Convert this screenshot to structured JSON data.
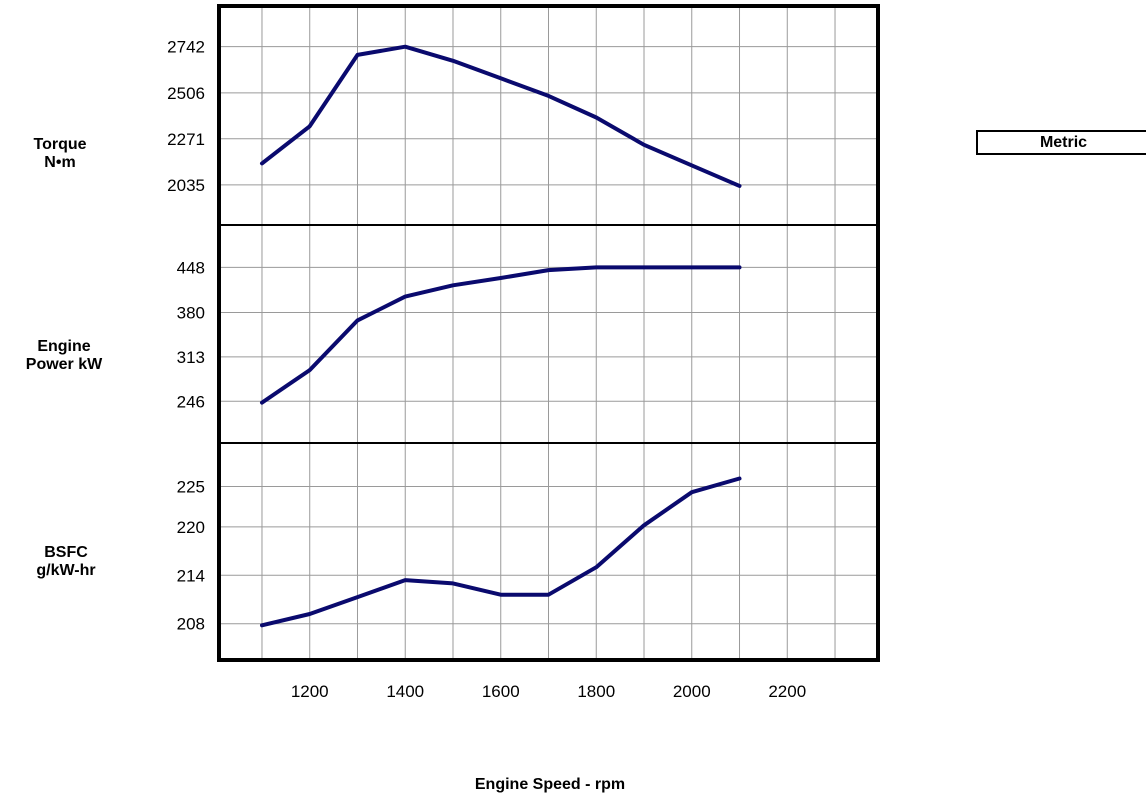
{
  "unit_toggle": {
    "label": "Metric"
  },
  "chart_data": {
    "type": "line",
    "xlabel": "Engine Speed - rpm",
    "x_ticks": [
      1200,
      1400,
      1600,
      1800,
      2000,
      2200
    ],
    "xlim": [
      1010,
      2390
    ],
    "grid": true,
    "panels": [
      {
        "ylabel": [
          "Torque",
          "N•m"
        ],
        "y_ticks": [
          2035,
          2271,
          2506,
          2742
        ],
        "ylim": [
          1830,
          2950
        ],
        "series": [
          {
            "color": "#0a0a6e",
            "x": [
              1100,
              1200,
              1300,
              1400,
              1500,
              1600,
              1700,
              1800,
              1900,
              2000,
              2100
            ],
            "y": [
              2145,
              2335,
              2700,
              2742,
              2670,
              2580,
              2490,
              2380,
              2240,
              2135,
              2030
            ]
          }
        ]
      },
      {
        "ylabel": [
          "Engine",
          "Power kW"
        ],
        "y_ticks": [
          246,
          313,
          380,
          448
        ],
        "ylim": [
          183,
          512
        ],
        "series": [
          {
            "color": "#0a0a6e",
            "x": [
              1100,
              1200,
              1300,
              1400,
              1500,
              1600,
              1700,
              1800,
              1900,
              2000,
              2100
            ],
            "y": [
              244,
              293,
              368,
              404,
              421,
              432,
              444,
              448,
              448,
              448,
              448
            ]
          }
        ]
      },
      {
        "ylabel": [
          "BSFC",
          "g/kW-hr"
        ],
        "y_ticks": [
          208,
          214,
          220,
          225
        ],
        "ylim": [
          203.5,
          230.4
        ],
        "series": [
          {
            "color": "#0a0a6e",
            "x": [
              1100,
              1200,
              1300,
              1400,
              1500,
              1600,
              1700,
              1800,
              1900,
              2000,
              2100
            ],
            "y": [
              207.8,
              209.2,
              211.3,
              213.4,
              213.0,
              211.6,
              211.6,
              215.0,
              220.2,
              224.3,
              226.0
            ]
          }
        ]
      }
    ]
  }
}
